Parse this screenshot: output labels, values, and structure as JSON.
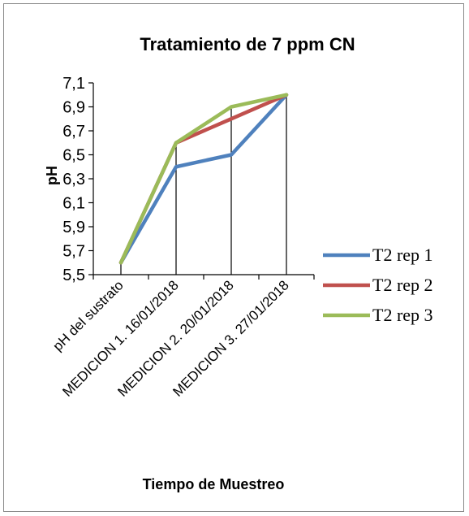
{
  "chart_data": {
    "type": "line",
    "title": "Tratamiento de 7 ppm CN",
    "xlabel": "Tiempo de Muestreo",
    "ylabel": "pH",
    "categories": [
      "pH del sustrato",
      "MEDICION 1. 16/01/2018",
      "MEDICION 2. 20/01/2018",
      "MEDICION 3. 27/01/2018"
    ],
    "ylim": [
      5.5,
      7.1
    ],
    "yticks": [
      "7,1",
      "6,9",
      "6,7",
      "6,5",
      "6,3",
      "6,1",
      "5,9",
      "5,7",
      "5,5"
    ],
    "grid": false,
    "drop_lines": true,
    "legend_position": "right",
    "series": [
      {
        "name": "T2 rep 1",
        "color": "#4F81BD",
        "values": [
          5.6,
          6.4,
          6.5,
          7.0
        ]
      },
      {
        "name": "T2 rep 2",
        "color": "#C0504D",
        "values": [
          5.6,
          6.6,
          6.8,
          7.0
        ]
      },
      {
        "name": "T2 rep 3",
        "color": "#9BBB59",
        "values": [
          5.6,
          6.6,
          6.9,
          7.0
        ]
      }
    ]
  }
}
